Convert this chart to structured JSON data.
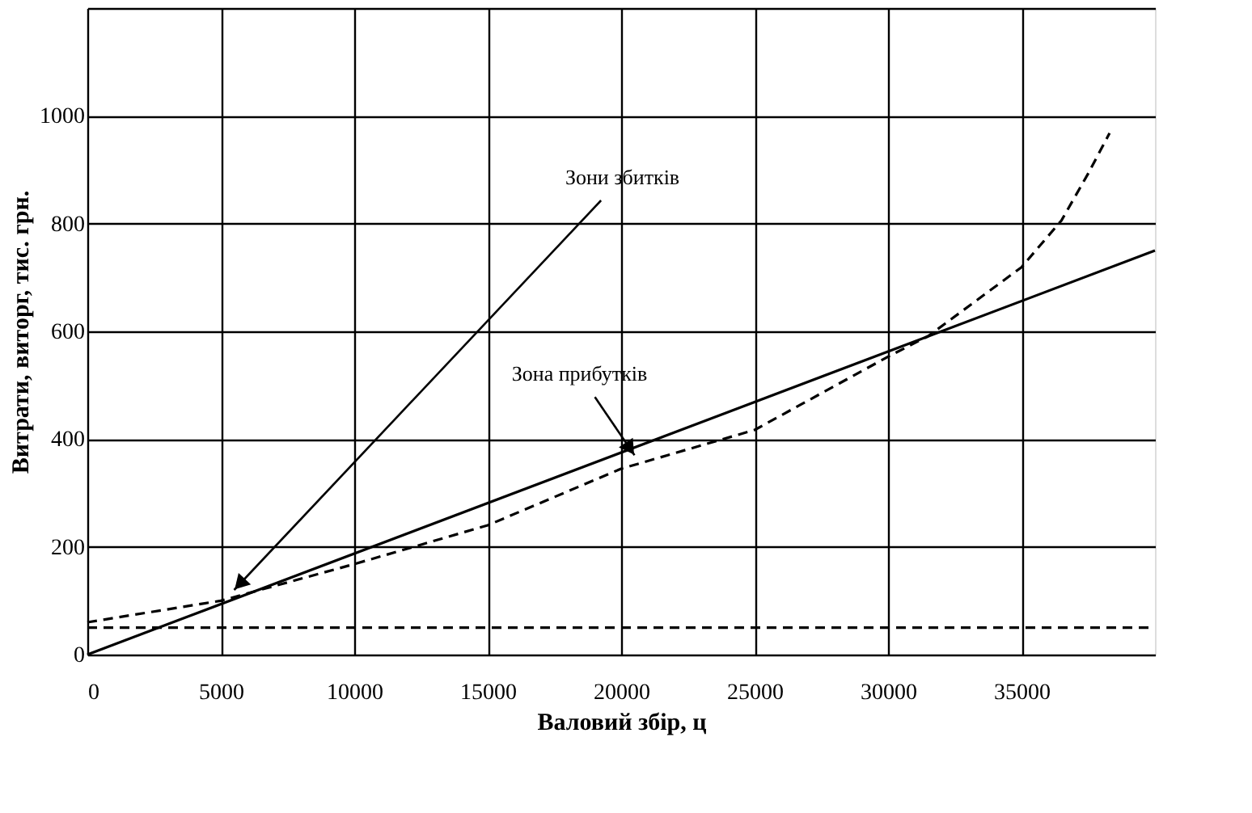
{
  "chart_data": {
    "type": "line",
    "xlabel": "Валовий збір, ц",
    "ylabel": "Витрати, виторг, тис. грн.",
    "xlim": [
      0,
      40000
    ],
    "xticks": [
      0,
      5000,
      10000,
      15000,
      20000,
      25000,
      30000,
      35000
    ],
    "ylim": [
      0,
      1200
    ],
    "yticks": [
      0,
      200,
      400,
      600,
      800,
      1000,
      {
        "value": 1200,
        "label": null
      }
    ],
    "grid": true,
    "series": [
      {
        "color": "#000000",
        "line_style": "solid",
        "x": [
          0,
          40000
        ],
        "values": [
          0,
          750
        ]
      },
      {
        "color": "#000000",
        "line_style": "dashed",
        "x": [
          0,
          5000,
          10000,
          15000,
          20000,
          25000,
          30000,
          31500,
          35000,
          36500,
          37500,
          38300
        ],
        "values": [
          60,
          100,
          168,
          240,
          345,
          417,
          553,
          591,
          719,
          806,
          893,
          968
        ]
      },
      {
        "color": "#000000",
        "line_style": "dashed",
        "x": [
          0,
          40000
        ],
        "values": [
          50,
          50
        ]
      }
    ],
    "annotations": [
      {
        "text": "Зони збитків",
        "x": 5500,
        "y": 120
      },
      {
        "text": "Зона прибутків",
        "x": 20500,
        "y": 370
      }
    ]
  }
}
